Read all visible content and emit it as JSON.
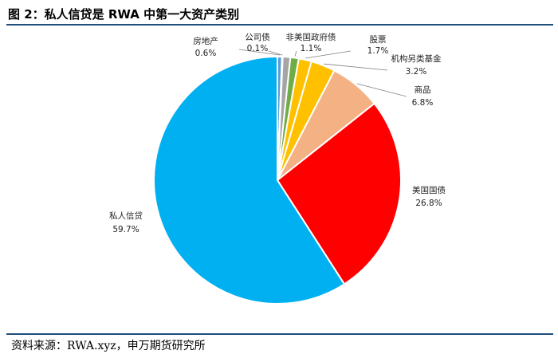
{
  "title": "图 2：私人信贷是 RWA 中第一大资产类别",
  "source": "资料来源：RWA.xyz，申万期货研究所",
  "chart_data": {
    "type": "pie",
    "title": "图 2：私人信贷是 RWA 中第一大资产类别",
    "start_angle_deg": 0,
    "direction": "clockwise",
    "slices": [
      {
        "name": "房地产",
        "value": 0.6,
        "label": "0.6%",
        "color": "#5b9bd5"
      },
      {
        "name": "公司债",
        "value": 0.1,
        "label": "0.1%",
        "color": "#264478"
      },
      {
        "name": "",
        "value": 1.0,
        "label": "",
        "color": "#a5a5a5"
      },
      {
        "name": "非美国政府债",
        "value": 1.1,
        "label": "1.1%",
        "color": "#70ad47"
      },
      {
        "name": "股票",
        "value": 1.7,
        "label": "1.7%",
        "color": "#ffc000"
      },
      {
        "name": "机构另类基金",
        "value": 3.2,
        "label": "3.2%",
        "color": "#ffc000"
      },
      {
        "name": "商品",
        "value": 6.8,
        "label": "6.8%",
        "color": "#f4b183"
      },
      {
        "name": "美国国债",
        "value": 26.8,
        "label": "26.8%",
        "color": "#ff0000"
      },
      {
        "name": "私人信贷",
        "value": 59.7,
        "label": "59.7%",
        "color": "#00b0f0"
      }
    ]
  }
}
